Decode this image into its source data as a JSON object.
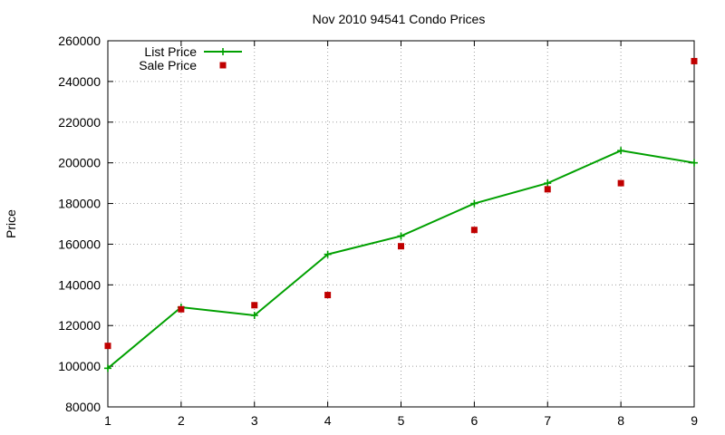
{
  "chart_data": {
    "type": "line",
    "title": "Nov 2010 94541 Condo Prices",
    "xlabel": "",
    "ylabel": "Price",
    "xlim": [
      1,
      9
    ],
    "ylim": [
      80000,
      260000
    ],
    "x_ticks": [
      "1",
      "2",
      "3",
      "4",
      "5",
      "6",
      "7",
      "8",
      "9"
    ],
    "y_ticks": [
      "80000",
      "100000",
      "120000",
      "140000",
      "160000",
      "180000",
      "200000",
      "220000",
      "240000",
      "260000"
    ],
    "grid": true,
    "legend_position": "top-left",
    "series": [
      {
        "name": "List Price",
        "style": "linespoints",
        "marker": "plus",
        "color": "#00a000",
        "x": [
          1,
          2,
          3,
          4,
          5,
          6,
          7,
          8,
          9
        ],
        "y": [
          99000,
          129000,
          125000,
          155000,
          164000,
          180000,
          190000,
          206000,
          200000
        ]
      },
      {
        "name": "Sale Price",
        "style": "points",
        "marker": "square",
        "color": "#c00000",
        "x": [
          1,
          2,
          3,
          4,
          5,
          6,
          7,
          8,
          9
        ],
        "y": [
          110000,
          128000,
          130000,
          135000,
          159000,
          167000,
          187000,
          190000,
          250000
        ]
      }
    ]
  }
}
